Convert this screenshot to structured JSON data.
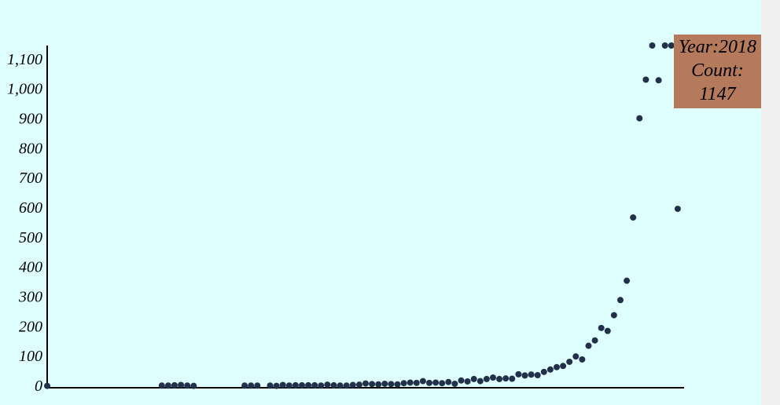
{
  "colors": {
    "background": "#dfffff",
    "point": "#22304a",
    "axis": "#000000",
    "tooltip": "#b57a5c"
  },
  "tooltip": {
    "year_label": "Year:2018",
    "count_label": "Count:",
    "count_value": "1147"
  },
  "chart_data": {
    "type": "scatter",
    "title": "",
    "xlabel": "",
    "ylabel": "",
    "ylim": [
      0,
      1147
    ],
    "yticks": [
      0,
      100,
      200,
      300,
      400,
      500,
      600,
      700,
      800,
      900,
      1000,
      1100
    ],
    "ytick_labels": [
      "0",
      "100",
      "200",
      "300",
      "400",
      "500",
      "600",
      "700",
      "800",
      "900",
      "1,000",
      "1,100"
    ],
    "xlim": [
      1920,
      2020
    ],
    "x_axis_tick_labels_shown": false,
    "grid": false,
    "points": [
      {
        "x": 1920,
        "y": 1
      },
      {
        "x": 1938,
        "y": 2
      },
      {
        "x": 1939,
        "y": 2
      },
      {
        "x": 1940,
        "y": 3
      },
      {
        "x": 1941,
        "y": 4
      },
      {
        "x": 1942,
        "y": 2
      },
      {
        "x": 1943,
        "y": 1
      },
      {
        "x": 1951,
        "y": 2
      },
      {
        "x": 1952,
        "y": 2
      },
      {
        "x": 1953,
        "y": 2
      },
      {
        "x": 1955,
        "y": 2
      },
      {
        "x": 1956,
        "y": 1
      },
      {
        "x": 1957,
        "y": 4
      },
      {
        "x": 1958,
        "y": 2
      },
      {
        "x": 1959,
        "y": 3
      },
      {
        "x": 1960,
        "y": 3
      },
      {
        "x": 1961,
        "y": 3
      },
      {
        "x": 1962,
        "y": 3
      },
      {
        "x": 1963,
        "y": 2
      },
      {
        "x": 1964,
        "y": 5
      },
      {
        "x": 1965,
        "y": 3
      },
      {
        "x": 1966,
        "y": 2
      },
      {
        "x": 1967,
        "y": 2
      },
      {
        "x": 1968,
        "y": 4
      },
      {
        "x": 1969,
        "y": 5
      },
      {
        "x": 1970,
        "y": 9
      },
      {
        "x": 1971,
        "y": 7
      },
      {
        "x": 1972,
        "y": 6
      },
      {
        "x": 1973,
        "y": 8
      },
      {
        "x": 1974,
        "y": 7
      },
      {
        "x": 1975,
        "y": 6
      },
      {
        "x": 1976,
        "y": 10
      },
      {
        "x": 1977,
        "y": 12
      },
      {
        "x": 1978,
        "y": 11
      },
      {
        "x": 1979,
        "y": 17
      },
      {
        "x": 1980,
        "y": 11
      },
      {
        "x": 1981,
        "y": 12
      },
      {
        "x": 1982,
        "y": 10
      },
      {
        "x": 1983,
        "y": 14
      },
      {
        "x": 1984,
        "y": 8
      },
      {
        "x": 1985,
        "y": 19
      },
      {
        "x": 1986,
        "y": 16
      },
      {
        "x": 1987,
        "y": 24
      },
      {
        "x": 1988,
        "y": 17
      },
      {
        "x": 1989,
        "y": 24
      },
      {
        "x": 1990,
        "y": 29
      },
      {
        "x": 1991,
        "y": 24
      },
      {
        "x": 1992,
        "y": 26
      },
      {
        "x": 1993,
        "y": 25
      },
      {
        "x": 1994,
        "y": 40
      },
      {
        "x": 1995,
        "y": 36
      },
      {
        "x": 1996,
        "y": 39
      },
      {
        "x": 1997,
        "y": 37
      },
      {
        "x": 1998,
        "y": 48
      },
      {
        "x": 1999,
        "y": 56
      },
      {
        "x": 2000,
        "y": 64
      },
      {
        "x": 2001,
        "y": 68
      },
      {
        "x": 2002,
        "y": 82
      },
      {
        "x": 2003,
        "y": 100
      },
      {
        "x": 2004,
        "y": 90
      },
      {
        "x": 2005,
        "y": 136
      },
      {
        "x": 2006,
        "y": 154
      },
      {
        "x": 2007,
        "y": 196
      },
      {
        "x": 2008,
        "y": 186
      },
      {
        "x": 2009,
        "y": 239
      },
      {
        "x": 2010,
        "y": 290
      },
      {
        "x": 2011,
        "y": 355
      },
      {
        "x": 2012,
        "y": 568
      },
      {
        "x": 2013,
        "y": 902
      },
      {
        "x": 2014,
        "y": 1032
      },
      {
        "x": 2015,
        "y": 1147
      },
      {
        "x": 2016,
        "y": 1030
      },
      {
        "x": 2017,
        "y": 1147
      },
      {
        "x": 2018,
        "y": 1147
      },
      {
        "x": 2019,
        "y": 597
      }
    ]
  }
}
